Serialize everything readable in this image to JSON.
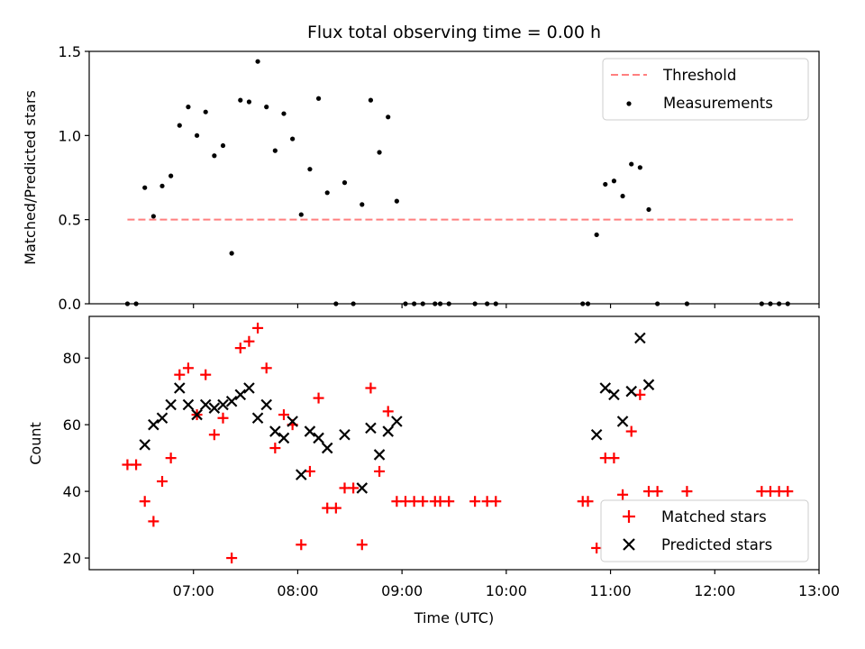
{
  "chart_data": [
    {
      "type": "scatter",
      "title": "Flux total observing time = 0.00 h",
      "xlabel": "",
      "ylabel": "Matched/Predicted stars",
      "xlim": [
        "06:00",
        "13:00"
      ],
      "ylim": [
        0,
        1.5
      ],
      "yticks": [
        "0.0",
        "0.5",
        "1.0",
        "1.5"
      ],
      "legend_position": "top-right",
      "grid": false,
      "threshold": {
        "name": "Threshold",
        "value": 0.5,
        "x_start": "06:22",
        "x_end": "12:45",
        "color": "#ff7f7f",
        "style": "dashed"
      },
      "series": [
        {
          "name": "Measurements",
          "color": "#000000",
          "marker": "dot",
          "points": [
            [
              "06:22",
              0.0
            ],
            [
              "06:27",
              0.0
            ],
            [
              "06:32",
              0.69
            ],
            [
              "06:37",
              0.52
            ],
            [
              "06:42",
              0.7
            ],
            [
              "06:47",
              0.76
            ],
            [
              "06:52",
              1.06
            ],
            [
              "06:57",
              1.17
            ],
            [
              "07:02",
              1.0
            ],
            [
              "07:07",
              1.14
            ],
            [
              "07:12",
              0.88
            ],
            [
              "07:17",
              0.94
            ],
            [
              "07:22",
              0.3
            ],
            [
              "07:27",
              1.21
            ],
            [
              "07:32",
              1.2
            ],
            [
              "07:37",
              1.44
            ],
            [
              "07:42",
              1.17
            ],
            [
              "07:47",
              0.91
            ],
            [
              "07:52",
              1.13
            ],
            [
              "07:57",
              0.98
            ],
            [
              "08:02",
              0.53
            ],
            [
              "08:07",
              0.8
            ],
            [
              "08:12",
              1.22
            ],
            [
              "08:17",
              0.66
            ],
            [
              "08:22",
              0.0
            ],
            [
              "08:27",
              0.72
            ],
            [
              "08:32",
              0.0
            ],
            [
              "08:37",
              0.59
            ],
            [
              "08:42",
              1.21
            ],
            [
              "08:47",
              0.9
            ],
            [
              "08:52",
              1.11
            ],
            [
              "08:57",
              0.61
            ],
            [
              "09:02",
              0.0
            ],
            [
              "09:07",
              0.0
            ],
            [
              "09:12",
              0.0
            ],
            [
              "09:19",
              0.0
            ],
            [
              "09:22",
              0.0
            ],
            [
              "09:27",
              0.0
            ],
            [
              "09:42",
              0.0
            ],
            [
              "09:49",
              0.0
            ],
            [
              "09:54",
              0.0
            ],
            [
              "10:44",
              0.0
            ],
            [
              "10:47",
              0.0
            ],
            [
              "10:52",
              0.41
            ],
            [
              "10:57",
              0.71
            ],
            [
              "11:02",
              0.73
            ],
            [
              "11:07",
              0.64
            ],
            [
              "11:12",
              0.83
            ],
            [
              "11:17",
              0.81
            ],
            [
              "11:22",
              0.56
            ],
            [
              "11:27",
              0.0
            ],
            [
              "11:44",
              0.0
            ],
            [
              "12:27",
              0.0
            ],
            [
              "12:32",
              0.0
            ],
            [
              "12:37",
              0.0
            ],
            [
              "12:42",
              0.0
            ]
          ]
        }
      ]
    },
    {
      "type": "scatter",
      "title": "",
      "xlabel": "Time (UTC)",
      "ylabel": "Count",
      "xlim": [
        "06:00",
        "13:00"
      ],
      "ylim": [
        16.5,
        92.5
      ],
      "yticks": [
        "20",
        "40",
        "60",
        "80"
      ],
      "xticks": [
        "07:00",
        "08:00",
        "09:00",
        "10:00",
        "11:00",
        "12:00",
        "13:00"
      ],
      "legend_position": "bottom-right",
      "grid": false,
      "series": [
        {
          "name": "Matched stars",
          "color": "#ff0000",
          "marker": "plus",
          "points": [
            [
              "06:22",
              48
            ],
            [
              "06:27",
              48
            ],
            [
              "06:32",
              37
            ],
            [
              "06:37",
              31
            ],
            [
              "06:42",
              43
            ],
            [
              "06:47",
              50
            ],
            [
              "06:52",
              75
            ],
            [
              "06:57",
              77
            ],
            [
              "07:02",
              63
            ],
            [
              "07:07",
              75
            ],
            [
              "07:12",
              57
            ],
            [
              "07:17",
              62
            ],
            [
              "07:22",
              20
            ],
            [
              "07:27",
              83
            ],
            [
              "07:32",
              85
            ],
            [
              "07:37",
              89
            ],
            [
              "07:42",
              77
            ],
            [
              "07:47",
              53
            ],
            [
              "07:52",
              63
            ],
            [
              "07:57",
              60
            ],
            [
              "08:02",
              24
            ],
            [
              "08:07",
              46
            ],
            [
              "08:12",
              68
            ],
            [
              "08:17",
              35
            ],
            [
              "08:22",
              35
            ],
            [
              "08:27",
              41
            ],
            [
              "08:32",
              41
            ],
            [
              "08:37",
              24
            ],
            [
              "08:42",
              71
            ],
            [
              "08:47",
              46
            ],
            [
              "08:52",
              64
            ],
            [
              "08:57",
              37
            ],
            [
              "09:02",
              37
            ],
            [
              "09:07",
              37
            ],
            [
              "09:12",
              37
            ],
            [
              "09:19",
              37
            ],
            [
              "09:22",
              37
            ],
            [
              "09:27",
              37
            ],
            [
              "09:42",
              37
            ],
            [
              "09:49",
              37
            ],
            [
              "09:54",
              37
            ],
            [
              "10:44",
              37
            ],
            [
              "10:47",
              37
            ],
            [
              "10:52",
              23
            ],
            [
              "10:57",
              50
            ],
            [
              "11:02",
              50
            ],
            [
              "11:07",
              39
            ],
            [
              "11:12",
              58
            ],
            [
              "11:17",
              69
            ],
            [
              "11:22",
              40
            ],
            [
              "11:27",
              40
            ],
            [
              "11:44",
              40
            ],
            [
              "12:27",
              40
            ],
            [
              "12:32",
              40
            ],
            [
              "12:37",
              40
            ],
            [
              "12:42",
              40
            ]
          ]
        },
        {
          "name": "Predicted stars",
          "color": "#000000",
          "marker": "x",
          "points": [
            [
              "06:32",
              54
            ],
            [
              "06:37",
              60
            ],
            [
              "06:42",
              62
            ],
            [
              "06:47",
              66
            ],
            [
              "06:52",
              71
            ],
            [
              "06:57",
              66
            ],
            [
              "07:02",
              63
            ],
            [
              "07:07",
              66
            ],
            [
              "07:12",
              65
            ],
            [
              "07:17",
              66
            ],
            [
              "07:22",
              67
            ],
            [
              "07:27",
              69
            ],
            [
              "07:32",
              71
            ],
            [
              "07:37",
              62
            ],
            [
              "07:42",
              66
            ],
            [
              "07:47",
              58
            ],
            [
              "07:52",
              56
            ],
            [
              "07:57",
              61
            ],
            [
              "08:02",
              45
            ],
            [
              "08:07",
              58
            ],
            [
              "08:12",
              56
            ],
            [
              "08:17",
              53
            ],
            [
              "08:27",
              57
            ],
            [
              "08:37",
              41
            ],
            [
              "08:42",
              59
            ],
            [
              "08:47",
              51
            ],
            [
              "08:52",
              58
            ],
            [
              "08:57",
              61
            ],
            [
              "10:52",
              57
            ],
            [
              "10:57",
              71
            ],
            [
              "11:02",
              69
            ],
            [
              "11:07",
              61
            ],
            [
              "11:12",
              70
            ],
            [
              "11:17",
              86
            ],
            [
              "11:22",
              72
            ]
          ]
        }
      ]
    }
  ]
}
